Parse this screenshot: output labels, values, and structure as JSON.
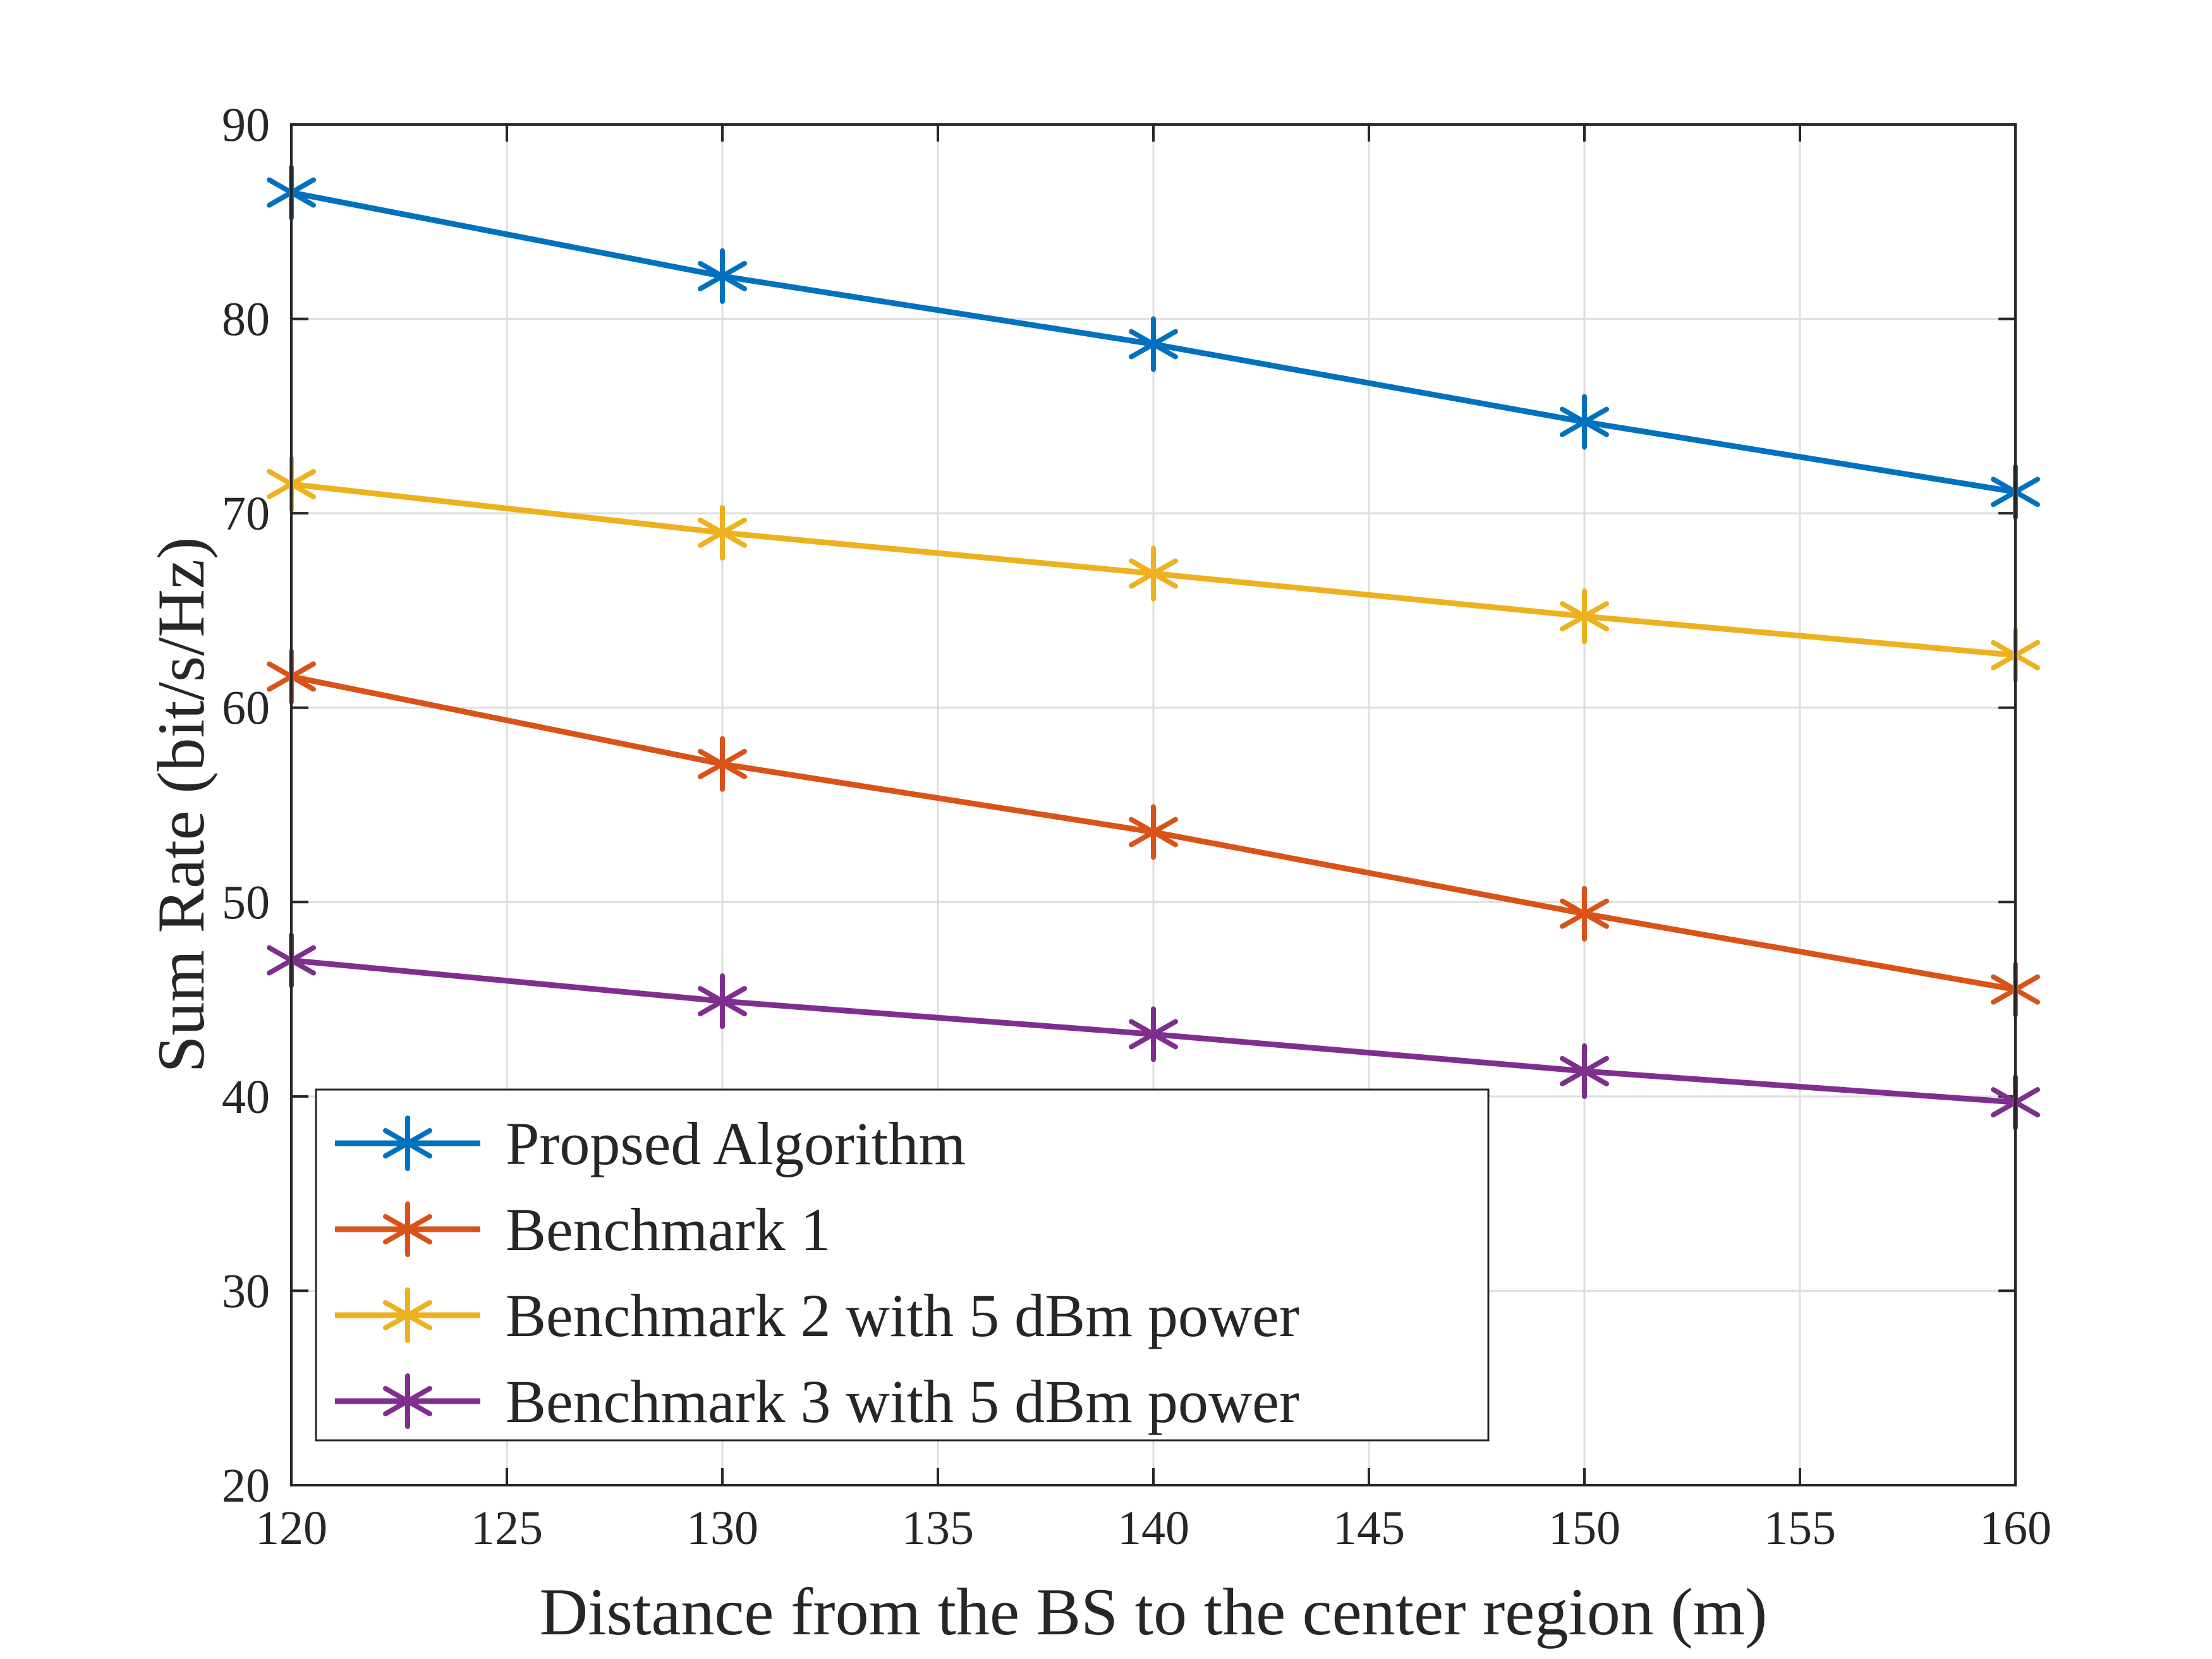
{
  "chart_data": {
    "type": "line",
    "title": "",
    "xlabel": "Distance from the BS to the center region (m)",
    "ylabel": "Sum Rate (bit/s/Hz)",
    "xlim": [
      120,
      160
    ],
    "ylim": [
      20,
      90
    ],
    "xticks": [
      120,
      125,
      130,
      135,
      140,
      145,
      150,
      155,
      160
    ],
    "yticks": [
      20,
      30,
      40,
      50,
      60,
      70,
      80,
      90
    ],
    "grid": true,
    "legend_position": "bottom-left",
    "marker": "asterisk",
    "x": [
      120,
      130,
      140,
      150,
      160
    ],
    "series": [
      {
        "name": "Propsed Algorithm",
        "color": "#0072BD",
        "values": [
          86.5,
          82.2,
          78.7,
          74.7,
          71.1
        ]
      },
      {
        "name": "Benchmark 1",
        "color": "#D95319",
        "values": [
          61.6,
          57.1,
          53.6,
          49.4,
          45.5
        ]
      },
      {
        "name": "Benchmark 2 with 5 dBm power",
        "color": "#EDB120",
        "values": [
          71.5,
          69.0,
          66.9,
          64.7,
          62.7
        ]
      },
      {
        "name": "Benchmark 3 with 5 dBm power",
        "color": "#7E2F8E",
        "values": [
          47.0,
          44.9,
          43.2,
          41.3,
          39.7
        ]
      }
    ]
  }
}
